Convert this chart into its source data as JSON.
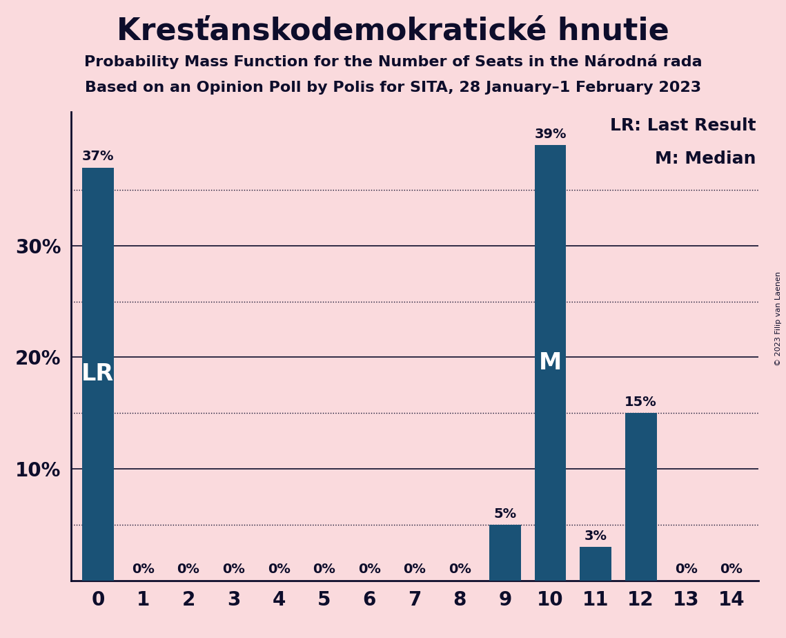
{
  "title": "Kresťanskodemokratické hnutie",
  "subtitle1": "Probability Mass Function for the Number of Seats in the Národná rada",
  "subtitle2": "Based on an Opinion Poll by Polis for SITA, 28 January–1 February 2023",
  "copyright": "© 2023 Filip van Laenen",
  "categories": [
    0,
    1,
    2,
    3,
    4,
    5,
    6,
    7,
    8,
    9,
    10,
    11,
    12,
    13,
    14
  ],
  "values": [
    0.37,
    0.0,
    0.0,
    0.0,
    0.0,
    0.0,
    0.0,
    0.0,
    0.0,
    0.05,
    0.39,
    0.03,
    0.15,
    0.0,
    0.0
  ],
  "labels": [
    "37%",
    "0%",
    "0%",
    "0%",
    "0%",
    "0%",
    "0%",
    "0%",
    "0%",
    "5%",
    "39%",
    "3%",
    "15%",
    "0%",
    "0%"
  ],
  "bar_color": "#1a5276",
  "background_color": "#fadadd",
  "text_color": "#0d0d2b",
  "lr_bar": 0,
  "median_bar": 10,
  "ylim": [
    0,
    0.42
  ],
  "major_yticks": [
    0.1,
    0.2,
    0.3
  ],
  "minor_yticks": [
    0.05,
    0.15,
    0.25,
    0.35
  ],
  "legend_lr": "LR: Last Result",
  "legend_m": "M: Median",
  "label_fontsize": 14,
  "tick_fontsize": 20,
  "title_fontsize": 32,
  "subtitle_fontsize": 16,
  "legend_fontsize": 18,
  "lr_m_fontsize": 24
}
